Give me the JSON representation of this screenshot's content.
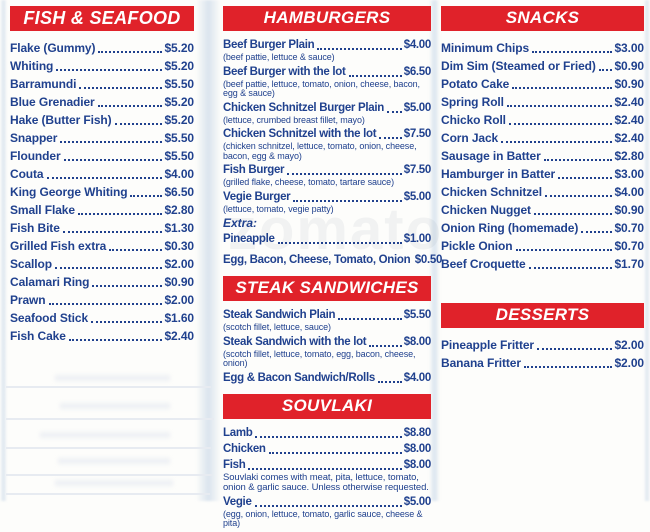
{
  "colors": {
    "banner_red": "#e0222a",
    "text_navy": "#20418e",
    "paper": "#fdfdfb"
  },
  "watermark": "zomato",
  "columns": [
    {
      "sections": [
        {
          "title": "FISH & SEAFOOD",
          "items": [
            {
              "name": "Flake (Gummy)",
              "price": "$5.20"
            },
            {
              "name": "Whiting",
              "price": "$5.20"
            },
            {
              "name": "Barramundi",
              "price": "$5.50"
            },
            {
              "name": "Blue Grenadier",
              "price": "$5.20"
            },
            {
              "name": "Hake (Butter Fish)",
              "price": "$5.20"
            },
            {
              "name": "Snapper",
              "price": "$5.50"
            },
            {
              "name": "Flounder",
              "price": "$5.50"
            },
            {
              "name": "Couta",
              "price": "$4.00"
            },
            {
              "name": "King George Whiting",
              "price": "$6.50"
            },
            {
              "name": "Small Flake",
              "price": "$2.80"
            },
            {
              "name": "Fish Bite",
              "price": "$1.30"
            },
            {
              "name": "Grilled Fish extra",
              "price": "$0.30"
            },
            {
              "name": "Scallop",
              "price": "$2.00"
            },
            {
              "name": "Calamari Ring",
              "price": "$0.90"
            },
            {
              "name": "Prawn",
              "price": "$2.00"
            },
            {
              "name": "Seafood Stick",
              "price": "$1.60"
            },
            {
              "name": "Fish Cake",
              "price": "$2.40"
            }
          ]
        }
      ]
    },
    {
      "sections": [
        {
          "title": "HAMBURGERS",
          "items": [
            {
              "name": "Beef Burger Plain",
              "price": "$4.00",
              "desc": "(beef pattie, lettuce & sauce)"
            },
            {
              "name": "Beef Burger with the lot",
              "price": "$6.50",
              "desc": "(beef pattie, lettuce, tomato, onion, cheese, bacon, egg & sauce)"
            },
            {
              "name": "Chicken Schnitzel Burger Plain",
              "price": "$5.00",
              "desc": "(lettuce, crumbed breast fillet, mayo)"
            },
            {
              "name": "Chicken Schnitzel with the lot",
              "price": "$7.50",
              "desc": "(chicken schnitzel, lettuce, tomato, onion, cheese, bacon, egg & mayo)"
            },
            {
              "name": "Fish Burger",
              "price": "$7.50",
              "desc": "(grilled flake, cheese, tomato, tartare sauce)"
            },
            {
              "name": "Vegie Burger",
              "price": "$5.00",
              "desc": "(lettuce, tomato, vegie patty)"
            },
            {
              "label": "Extra:"
            },
            {
              "name": "Pineapple",
              "price": "$1.00"
            },
            {
              "name": "Egg, Bacon, Cheese, Tomato, Onion",
              "price": "$0.50",
              "dots": false
            }
          ]
        },
        {
          "title": "STEAK SANDWICHES",
          "items": [
            {
              "name": "Steak Sandwich Plain",
              "price": "$5.50",
              "desc": "(scotch fillet, lettuce, sauce)"
            },
            {
              "name": "Steak Sandwich with the lot",
              "price": "$8.00",
              "desc": "(scotch fillet, lettuce, tomato, egg, bacon, cheese, onion)"
            },
            {
              "name": "Egg & Bacon Sandwich/Rolls",
              "price": "$4.00"
            }
          ]
        },
        {
          "title": "SOUVLAKI",
          "items": [
            {
              "name": "Lamb",
              "price": "$8.80"
            },
            {
              "name": "Chicken",
              "price": "$8.00"
            },
            {
              "name": "Fish",
              "price": "$8.00",
              "note": "Souvlaki comes with meat, pita, lettuce, tomato, onion & garlic sauce.  Unless otherwise requested."
            },
            {
              "name": "Vegie",
              "price": "$5.00",
              "desc": "(egg, onion, lettuce, tomato, garlic sauce, cheese & pita)"
            }
          ]
        }
      ]
    },
    {
      "sections": [
        {
          "title": "SNACKS",
          "items": [
            {
              "name": "Minimum Chips",
              "price": "$3.00"
            },
            {
              "name": "Dim Sim (Steamed or Fried)",
              "price": "$0.90"
            },
            {
              "name": "Potato Cake",
              "price": "$0.90"
            },
            {
              "name": "Spring Roll",
              "price": "$2.40"
            },
            {
              "name": "Chicko Roll",
              "price": "$2.40"
            },
            {
              "name": "Corn Jack",
              "price": "$2.40"
            },
            {
              "name": "Sausage in Batter",
              "price": "$2.80"
            },
            {
              "name": "Hamburger in Batter",
              "price": "$3.00"
            },
            {
              "name": "Chicken Schnitzel",
              "price": "$4.00"
            },
            {
              "name": "Chicken Nugget",
              "price": "$0.90"
            },
            {
              "name": "Onion Ring (homemade)",
              "price": "$0.70"
            },
            {
              "name": "Pickle Onion",
              "price": "$0.70"
            },
            {
              "name": "Beef Croquette",
              "price": "$1.70"
            }
          ]
        },
        {
          "title": "DESSERTS",
          "items": [
            {
              "name": "Pineapple Fritter",
              "price": "$2.00"
            },
            {
              "name": "Banana Fritter",
              "price": "$2.00"
            }
          ]
        }
      ]
    }
  ]
}
